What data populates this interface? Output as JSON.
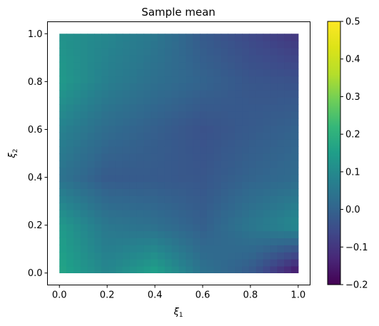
{
  "chart_data": {
    "type": "heatmap",
    "title": "Sample mean",
    "xlabel": "ξ",
    "xlabel_sub": "1",
    "ylabel": "ξ",
    "ylabel_sub": "2",
    "xlim": [
      -0.05,
      1.05
    ],
    "ylim": [
      -0.05,
      1.05
    ],
    "x_ticks": [
      0.0,
      0.2,
      0.4,
      0.6,
      0.8,
      1.0
    ],
    "x_tick_labels": [
      "0.0",
      "0.2",
      "0.4",
      "0.6",
      "0.8",
      "1.0"
    ],
    "y_ticks": [
      0.0,
      0.2,
      0.4,
      0.6,
      0.8,
      1.0
    ],
    "y_tick_labels": [
      "0.0",
      "0.2",
      "0.4",
      "0.6",
      "0.8",
      "1.0"
    ],
    "colorbar": {
      "colormap": "viridis",
      "range": [
        -0.2,
        0.5
      ],
      "ticks": [
        -0.2,
        -0.1,
        0.0,
        0.1,
        0.2,
        0.3,
        0.4,
        0.5
      ],
      "tick_labels": [
        "−0.2",
        "−0.1",
        "0.0",
        "0.1",
        "0.2",
        "0.3",
        "0.4",
        "0.5"
      ]
    },
    "grid": false,
    "x": [
      0.0,
      0.2,
      0.4,
      0.6,
      0.8,
      1.0
    ],
    "y": [
      0.0,
      0.2,
      0.4,
      0.6,
      0.8,
      1.0
    ],
    "z": [
      [
        0.17,
        0.09,
        0.16,
        0.04,
        -0.02,
        -0.17
      ],
      [
        0.14,
        0.05,
        0.03,
        -0.01,
        0.05,
        0.1
      ],
      [
        0.04,
        -0.02,
        -0.02,
        -0.03,
        0.0,
        0.02
      ],
      [
        0.08,
        0.02,
        -0.01,
        -0.04,
        -0.02,
        0.0
      ],
      [
        0.14,
        0.07,
        0.03,
        0.0,
        -0.03,
        -0.04
      ],
      [
        0.12,
        0.09,
        0.05,
        -0.02,
        -0.06,
        -0.1
      ]
    ]
  }
}
